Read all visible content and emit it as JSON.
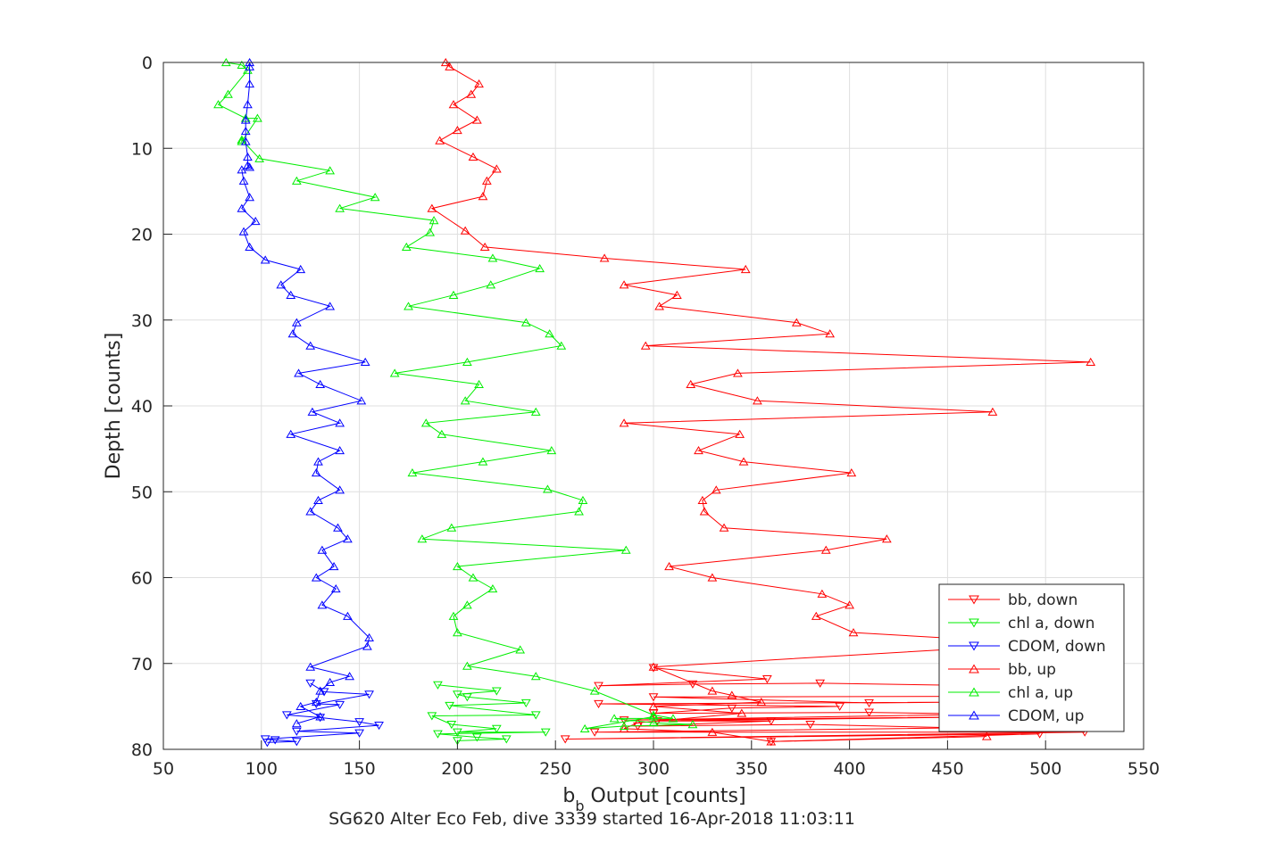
{
  "chart_data": {
    "type": "line",
    "title": "SG620 Alter Eco Feb, dive 3339 started 16-Apr-2018 11:03:11",
    "xlabel": {
      "main": "b",
      "subscript": "b",
      "rest": " Output [counts]"
    },
    "ylabel": "Depth [counts]",
    "xlim": [
      50,
      550
    ],
    "ylim": [
      0,
      80
    ],
    "y_reversed": true,
    "grid": true,
    "legend_position": "lower-right",
    "xticks": [
      "50",
      "100",
      "150",
      "200",
      "250",
      "300",
      "350",
      "400",
      "450",
      "500",
      "550"
    ],
    "yticks": [
      "0",
      "10",
      "20",
      "30",
      "40",
      "50",
      "60",
      "70",
      "80"
    ],
    "series": [
      {
        "name": "bb, down",
        "color": "#ff0000",
        "marker": "triangle-down",
        "x": [
          300,
          358,
          272,
          320,
          385,
          470,
          510,
          522,
          300,
          410,
          455,
          272,
          395,
          340,
          300,
          410,
          470,
          285,
          480,
          302,
          360,
          292,
          380,
          455,
          270,
          520,
          255,
          497,
          360
        ],
        "y": [
          70.5,
          71.8,
          72.6,
          72.4,
          72.3,
          72.6,
          73.5,
          73.8,
          73.9,
          74.6,
          74.5,
          74.7,
          75.0,
          75.2,
          75.8,
          75.7,
          75.9,
          76.6,
          76.2,
          76.7,
          76.7,
          77.3,
          77.1,
          77.5,
          78.0,
          78.0,
          78.8,
          78.2,
          79.1
        ]
      },
      {
        "name": "chl a, down",
        "color": "#00ee00",
        "marker": "triangle-down",
        "x": [
          190,
          220,
          200,
          205,
          235,
          196,
          240,
          187,
          197,
          220,
          200,
          245,
          190,
          210,
          225,
          200
        ],
        "y": [
          72.5,
          73.2,
          73.6,
          73.9,
          74.6,
          74.9,
          76.0,
          76.1,
          77.1,
          77.6,
          78.0,
          78.0,
          78.2,
          78.6,
          78.8,
          79.0
        ],
        "note": "chl a down traces"
      },
      {
        "name": "CDOM, down",
        "color": "#0000ff",
        "marker": "triangle-down",
        "x": [
          125,
          132,
          155,
          128,
          140,
          113,
          130,
          150,
          160,
          118,
          150,
          102,
          107,
          118,
          103
        ],
        "y": [
          72.3,
          73.3,
          73.6,
          74.7,
          74.8,
          76.0,
          76.3,
          76.8,
          77.2,
          77.9,
          78.1,
          78.8,
          78.9,
          79.1,
          79.2
        ]
      },
      {
        "name": "bb, up",
        "color": "#ff0000",
        "marker": "triangle-up",
        "x": [
          194,
          196,
          211,
          207,
          198,
          210,
          200,
          191,
          208,
          220,
          215,
          213,
          187,
          204,
          214,
          275,
          347,
          285,
          312,
          303,
          373,
          390,
          296,
          523,
          343,
          319,
          353,
          473,
          285,
          344,
          323,
          346,
          401,
          332,
          325,
          326,
          336,
          419,
          388,
          308,
          330,
          386,
          400,
          383,
          402,
          500,
          300,
          330,
          340,
          355,
          300,
          345,
          292,
          285,
          330,
          360,
          470
        ],
        "y": [
          0,
          0.5,
          2.5,
          3.7,
          4.9,
          6.7,
          7.9,
          9.1,
          11.0,
          12.4,
          13.8,
          15.6,
          17.0,
          19.6,
          21.5,
          22.8,
          24.1,
          25.9,
          27.1,
          28.4,
          30.3,
          31.6,
          33.0,
          34.9,
          36.2,
          37.5,
          39.4,
          40.7,
          42.0,
          43.3,
          45.2,
          46.5,
          47.8,
          49.8,
          51.0,
          52.3,
          54.2,
          55.5,
          56.8,
          58.7,
          60.0,
          61.9,
          63.2,
          64.5,
          66.4,
          67.7,
          70.4,
          73.2,
          73.7,
          74.5,
          75.0,
          75.8,
          76.9,
          77.6,
          78.0,
          79.1,
          78.5
        ]
      },
      {
        "name": "chl a, up",
        "color": "#00ee00",
        "marker": "triangle-up",
        "x": [
          82,
          90,
          93,
          83,
          78,
          92,
          98,
          90,
          90,
          99,
          135,
          118,
          158,
          140,
          188,
          186,
          174,
          218,
          242,
          217,
          198,
          175,
          235,
          247,
          253,
          205,
          168,
          211,
          204,
          240,
          184,
          192,
          248,
          213,
          177,
          246,
          264,
          262,
          197,
          182,
          286,
          200,
          208,
          218,
          205,
          198,
          200,
          232,
          205,
          240,
          270,
          300,
          310,
          280,
          300,
          320,
          285,
          265,
          300
        ],
        "y": [
          0,
          0.3,
          0.9,
          3.7,
          4.9,
          6.5,
          6.5,
          9.2,
          9.0,
          11.2,
          12.6,
          13.8,
          15.7,
          17.0,
          18.4,
          19.8,
          21.5,
          22.8,
          24.0,
          25.9,
          27.1,
          28.4,
          30.3,
          31.6,
          33.0,
          34.9,
          36.2,
          37.5,
          39.4,
          40.7,
          42.0,
          43.3,
          45.2,
          46.5,
          47.8,
          49.7,
          51.0,
          52.3,
          54.2,
          55.5,
          56.8,
          58.7,
          60.0,
          61.3,
          63.2,
          64.5,
          66.4,
          68.4,
          70.3,
          71.5,
          73.2,
          76.0,
          76.4,
          76.4,
          76.9,
          77.1,
          77.3,
          77.6,
          76.2
        ]
      },
      {
        "name": "CDOM, up",
        "color": "#0000ff",
        "marker": "triangle-up",
        "x": [
          94,
          94,
          94,
          93,
          92,
          92,
          92,
          93,
          93,
          94,
          90,
          91,
          94,
          90,
          97,
          91,
          94,
          102,
          120,
          110,
          115,
          135,
          118,
          116,
          125,
          153,
          119,
          130,
          151,
          126,
          140,
          115,
          140,
          129,
          128,
          140,
          129,
          125,
          139,
          144,
          131,
          137,
          128,
          138,
          131,
          144,
          155,
          154,
          125,
          145,
          135,
          130,
          128,
          120,
          130,
          118
        ],
        "y": [
          0,
          0.5,
          2.5,
          4.9,
          6.7,
          8.0,
          9.2,
          11.0,
          12.0,
          12.2,
          12.5,
          13.8,
          15.7,
          17.0,
          18.5,
          19.7,
          21.5,
          23.0,
          24.1,
          25.9,
          27.1,
          28.4,
          30.3,
          31.6,
          33.0,
          34.9,
          36.2,
          37.5,
          39.4,
          40.7,
          42.0,
          43.3,
          45.2,
          46.5,
          47.8,
          49.8,
          51.0,
          52.3,
          54.2,
          55.5,
          56.8,
          58.7,
          60.0,
          61.3,
          63.2,
          64.5,
          67.0,
          68.0,
          70.4,
          71.5,
          72.2,
          73.2,
          74.5,
          75.0,
          76.2,
          77.0
        ]
      }
    ]
  }
}
